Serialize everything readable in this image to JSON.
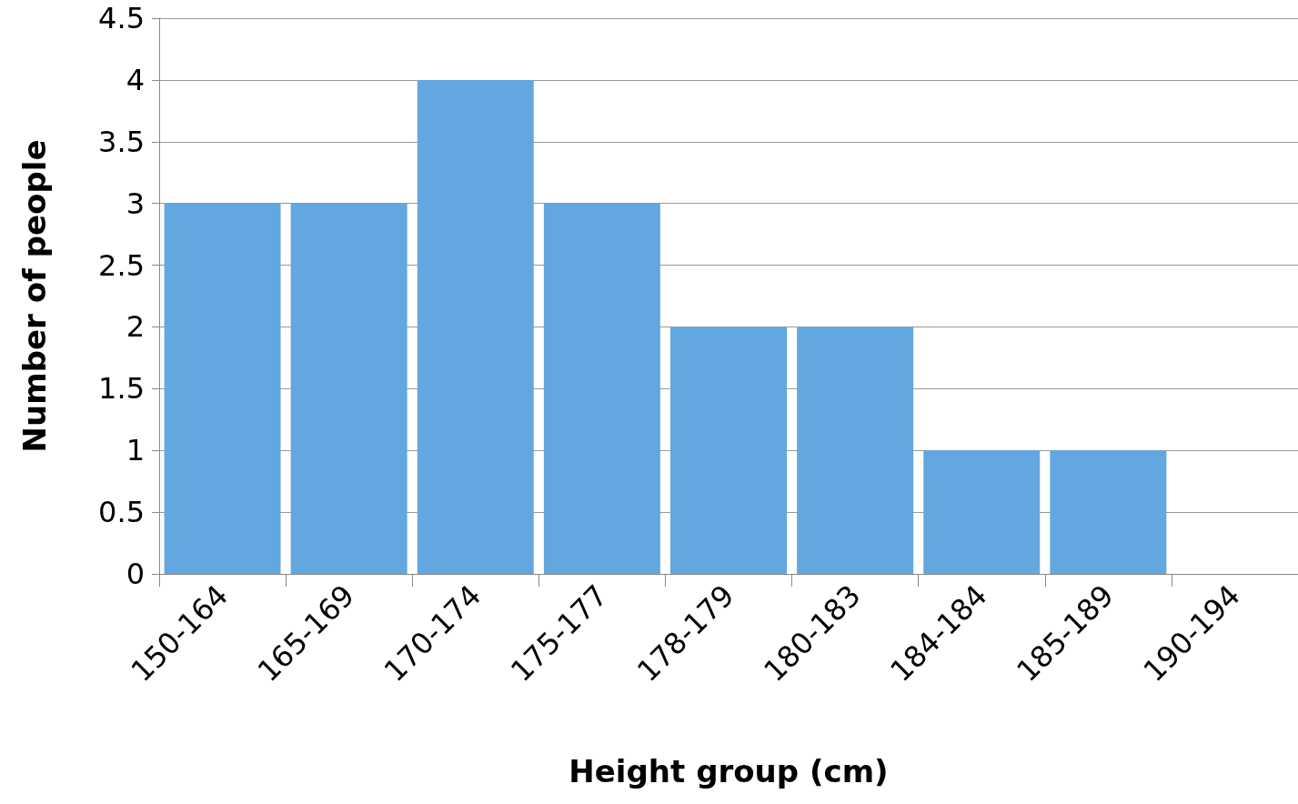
{
  "chart_data": {
    "type": "bar",
    "xlabel": "Height group (cm)",
    "ylabel": "Number of people",
    "categories": [
      "150-164",
      "165-169",
      "170-174",
      "175-177",
      "178-179",
      "180-183",
      "184-184",
      "185-189",
      "190-194"
    ],
    "values": [
      3,
      3,
      4,
      3,
      2,
      2,
      1,
      1,
      0
    ],
    "color": "#62a7df",
    "ylim": [
      0,
      4.5
    ],
    "yticks": [
      0,
      0.5,
      1,
      1.5,
      2,
      2.5,
      3,
      3.5,
      4,
      4.5
    ],
    "grid": "y"
  }
}
